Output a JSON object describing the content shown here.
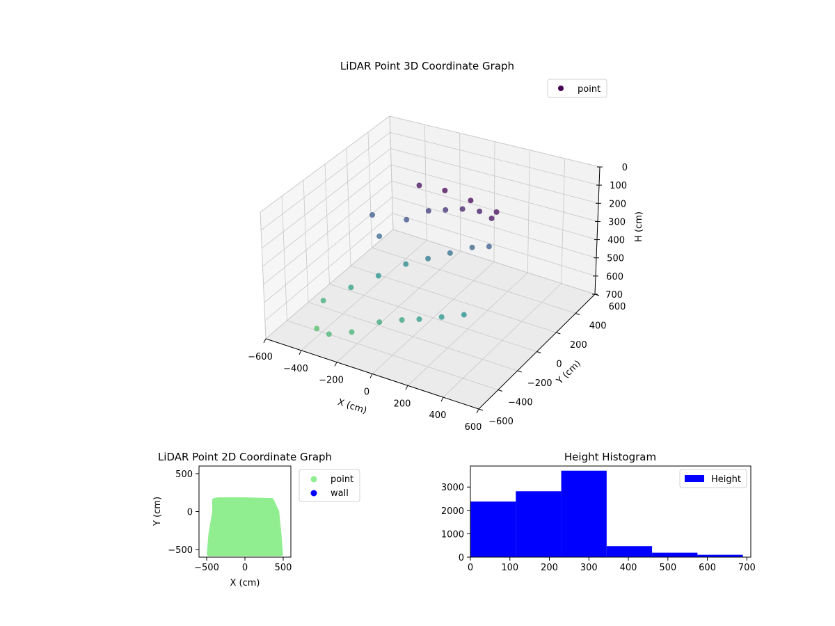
{
  "chart_data": [
    {
      "type": "scatter",
      "title": "LiDAR Point 3D Coordinate Graph",
      "xlabel": "X (cm)",
      "ylabel": "Y (cm)",
      "zlabel": "H (cm)",
      "x_ticks": [
        "−600",
        "−400",
        "−200",
        "0",
        "200",
        "400",
        "600"
      ],
      "y_ticks": [
        "−600",
        "−400",
        "−200",
        "0",
        "200",
        "400",
        "600"
      ],
      "z_ticks": [
        "0",
        "100",
        "200",
        "300",
        "400",
        "500",
        "600",
        "700"
      ],
      "xlim": [
        -600,
        600
      ],
      "ylim": [
        -600,
        600
      ],
      "zlim": [
        700,
        0
      ],
      "legend": [
        "point"
      ],
      "legend_position": "top-right",
      "colormap": "viridis",
      "grid": true,
      "series": [
        {
          "name": "point",
          "description_of_shape": "dome-shaped cloud; dense dark top at high H near center-back, sparse teal points spreading lower toward front-left",
          "sample_points": [
            [
              -400,
              -450,
              650
            ],
            [
              -300,
              -500,
              620
            ],
            [
              -200,
              -450,
              600
            ],
            [
              -100,
              -350,
              560
            ],
            [
              0,
              -300,
              540
            ],
            [
              100,
              -300,
              500
            ],
            [
              200,
              -250,
              480
            ],
            [
              300,
              -200,
              460
            ],
            [
              -450,
              -300,
              580
            ],
            [
              -350,
              -200,
              520
            ],
            [
              -250,
              -100,
              470
            ],
            [
              -150,
              0,
              420
            ],
            [
              -50,
              50,
              380
            ],
            [
              50,
              100,
              340
            ],
            [
              150,
              150,
              300
            ],
            [
              250,
              150,
              260
            ],
            [
              -300,
              0,
              300
            ],
            [
              -200,
              100,
              220
            ],
            [
              -100,
              150,
              160
            ],
            [
              0,
              150,
              120
            ],
            [
              100,
              150,
              80
            ],
            [
              200,
              150,
              60
            ],
            [
              300,
              100,
              40
            ],
            [
              -400,
              100,
              260
            ],
            [
              -150,
              150,
              20
            ],
            [
              0,
              150,
              0
            ],
            [
              150,
              150,
              10
            ],
            [
              300,
              150,
              30
            ]
          ]
        }
      ]
    },
    {
      "type": "scatter",
      "title": "LiDAR Point 2D Coordinate Graph",
      "xlabel": "X (cm)",
      "ylabel": "Y (cm)",
      "x_ticks": [
        "−500",
        "0",
        "500"
      ],
      "y_ticks": [
        "500",
        "0",
        "−500"
      ],
      "xlim": [
        -600,
        600
      ],
      "ylim": [
        -600,
        600
      ],
      "legend": [
        "point",
        "wall"
      ],
      "legend_position": "right-outside",
      "series": [
        {
          "name": "point",
          "color": "#90ee90",
          "region_outline": [
            [
              -400,
              150
            ],
            [
              -350,
              160
            ],
            [
              0,
              160
            ],
            [
              350,
              150
            ],
            [
              420,
              0
            ],
            [
              450,
              -300
            ],
            [
              470,
              -560
            ],
            [
              -470,
              -560
            ],
            [
              -450,
              -300
            ],
            [
              -400,
              0
            ]
          ]
        },
        {
          "name": "wall",
          "color": "#0000ff",
          "values": []
        }
      ]
    },
    {
      "type": "bar",
      "title": "Height Histogram",
      "legend": [
        "Height"
      ],
      "legend_position": "top-right",
      "x_ticks": [
        "0",
        "100",
        "200",
        "300",
        "400",
        "500",
        "600",
        "700"
      ],
      "y_ticks": [
        "0",
        "1000",
        "2000",
        "3000"
      ],
      "xlim": [
        0,
        710
      ],
      "ylim": [
        0,
        3900
      ],
      "color": "#0000ff",
      "bins": [
        {
          "x0": 0,
          "x1": 115,
          "count": 2380
        },
        {
          "x0": 115,
          "x1": 230,
          "count": 2820
        },
        {
          "x0": 230,
          "x1": 345,
          "count": 3700
        },
        {
          "x0": 345,
          "x1": 460,
          "count": 470
        },
        {
          "x0": 460,
          "x1": 575,
          "count": 190
        },
        {
          "x0": 575,
          "x1": 690,
          "count": 100
        }
      ]
    }
  ]
}
